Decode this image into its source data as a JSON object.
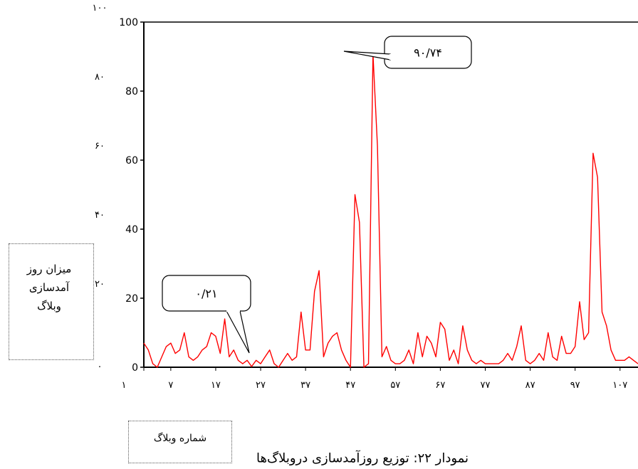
{
  "chart_data": {
    "type": "line",
    "title": "",
    "caption": "نمودار ۲۲: توزیع روزآمدسازی دروبلاگ‌ها",
    "xlabel": "شماره وبلاگ",
    "ylabel": "میزان روز آمدسازی وبلاگ",
    "ylabel_lines": [
      "میزان روز",
      "آمدسازی",
      "وبلاگ"
    ],
    "ylim": [
      0,
      100
    ],
    "xlim": [
      1,
      111
    ],
    "grid": false,
    "line_color": "#ff0000",
    "y_ticks": [
      0,
      20,
      40,
      60,
      80,
      100
    ],
    "y_tick_labels_outer": [
      "۰",
      "۲۰",
      "۴۰",
      "۶۰",
      "۸۰",
      "۱۰۰"
    ],
    "y_tick_labels_inner": [
      "0",
      "20",
      "40",
      "60",
      "80",
      "100"
    ],
    "x_ticks": [
      1,
      7,
      17,
      27,
      37,
      47,
      57,
      67,
      77,
      87,
      97,
      107
    ],
    "x_tick_labels": [
      "۱",
      "۷",
      "۱۷",
      "۲۷",
      "۳۷",
      "۴۷",
      "۵۷",
      "۶۷",
      "۷۷",
      "۸۷",
      "۹۷",
      "۱۰۷"
    ],
    "annotations": [
      {
        "label": "۹۰/۷۴",
        "x": 52,
        "y": 90.74
      },
      {
        "label": "۰/۲۱",
        "x": 24,
        "y": 0.21
      }
    ],
    "series": [
      {
        "x": [
          1,
          2,
          3,
          4,
          5,
          6,
          7,
          8,
          9,
          10,
          11,
          12,
          13,
          14,
          15,
          16,
          17,
          18,
          19,
          20,
          21,
          22,
          23,
          24,
          25,
          26,
          27,
          28,
          29,
          30,
          31,
          32,
          33,
          34,
          35,
          36,
          37,
          38,
          39,
          40,
          41,
          42,
          43,
          44,
          45,
          46,
          47,
          48,
          49,
          50,
          51,
          52,
          53,
          54,
          55,
          56,
          57,
          58,
          59,
          60,
          61,
          62,
          63,
          64,
          65,
          66,
          67,
          68,
          69,
          70,
          71,
          72,
          73,
          74,
          75,
          76,
          77,
          78,
          79,
          80,
          81,
          82,
          83,
          84,
          85,
          86,
          87,
          88,
          89,
          90,
          91,
          92,
          93,
          94,
          95,
          96,
          97,
          98,
          99,
          100,
          101,
          102,
          103,
          104,
          105,
          106,
          107,
          108,
          109,
          110,
          111
        ],
        "values": [
          7,
          5,
          1,
          0,
          3,
          6,
          7,
          4,
          5,
          10,
          3,
          2,
          3,
          5,
          6,
          10,
          9,
          4,
          14,
          3,
          5,
          2,
          1,
          2,
          0.21,
          2,
          1,
          3,
          5,
          1,
          0,
          2,
          4,
          2,
          3,
          16,
          5,
          5,
          22,
          28,
          3,
          7,
          9,
          10,
          5,
          2,
          0,
          50,
          42,
          0,
          1,
          90.74,
          64,
          3,
          6,
          2,
          1,
          1,
          2,
          5,
          1,
          10,
          3,
          9,
          7,
          3,
          13,
          11,
          2,
          5,
          1,
          12,
          5,
          2,
          1,
          2,
          1,
          1,
          1,
          1,
          2,
          4,
          2,
          6,
          12,
          2,
          1,
          2,
          4,
          2,
          10,
          3,
          2,
          9,
          4,
          4,
          6,
          19,
          8,
          10,
          62,
          55,
          16,
          12,
          5,
          2,
          2,
          2,
          3,
          2,
          1
        ]
      }
    ]
  }
}
